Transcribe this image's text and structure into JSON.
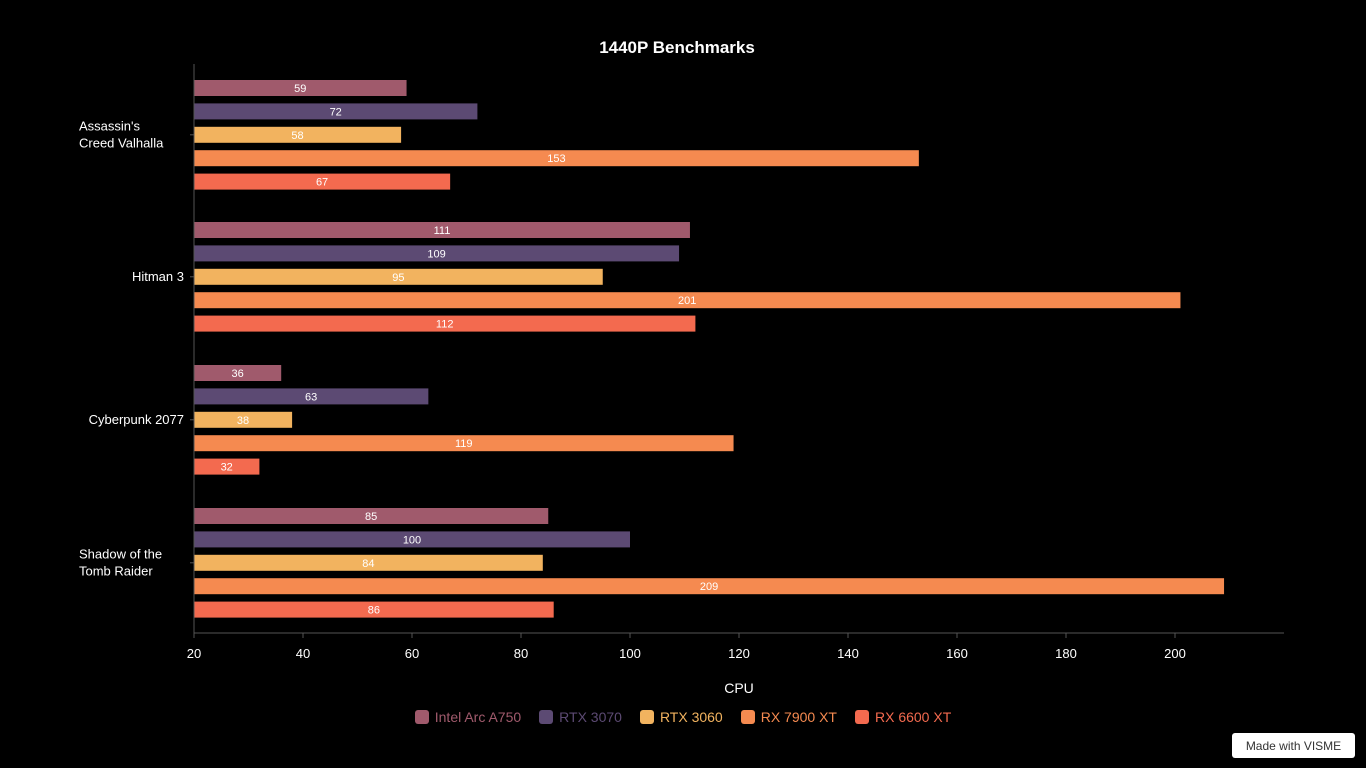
{
  "badge": {
    "text": "Made with VISME"
  },
  "colors": {
    "axis": "#555555",
    "series": [
      "#a05a6c",
      "#5c4a73",
      "#f2b35f",
      "#f58a50",
      "#f36a4f"
    ]
  },
  "chart_data": {
    "type": "bar",
    "orientation": "horizontal",
    "title": "1440P Benchmarks",
    "xlabel": "CPU",
    "ylabel": "",
    "xlim": [
      20,
      220
    ],
    "xticks": [
      20,
      40,
      60,
      80,
      100,
      120,
      140,
      160,
      180,
      200
    ],
    "grid": false,
    "legend_position": "bottom",
    "categories": [
      [
        "Assassin's",
        "Creed Valhalla"
      ],
      [
        "Hitman 3"
      ],
      [
        "Cyberpunk 2077"
      ],
      [
        "Shadow of the",
        "Tomb Raider"
      ]
    ],
    "series": [
      {
        "name": "Intel Arc A750",
        "values": [
          59,
          111,
          36,
          85
        ]
      },
      {
        "name": "RTX 3070",
        "values": [
          72,
          109,
          63,
          100
        ]
      },
      {
        "name": "RTX 3060",
        "values": [
          58,
          95,
          38,
          84
        ]
      },
      {
        "name": "RX 7900 XT",
        "values": [
          153,
          201,
          119,
          209
        ]
      },
      {
        "name": "RX 6600 XT",
        "values": [
          67,
          112,
          32,
          86
        ]
      }
    ]
  }
}
